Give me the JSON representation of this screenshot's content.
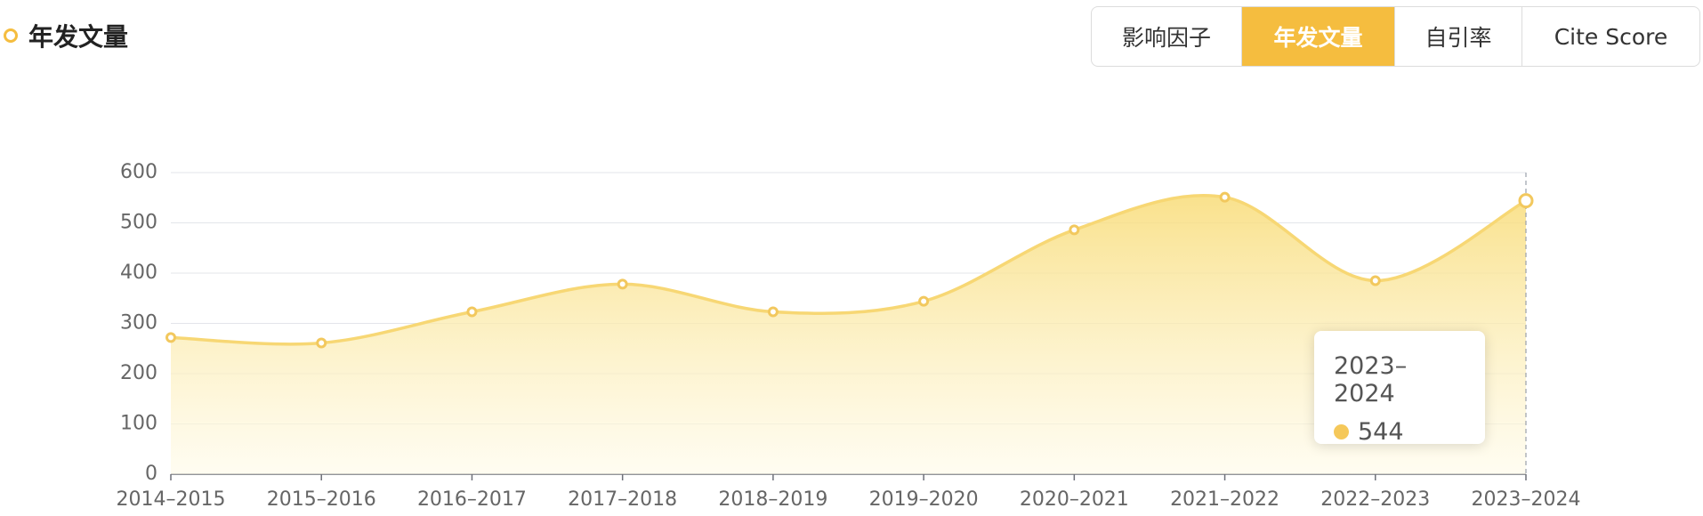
{
  "header": {
    "title": "年发文量"
  },
  "tabs": [
    {
      "label": "影响因子",
      "active": false
    },
    {
      "label": "年发文量",
      "active": true
    },
    {
      "label": "自引率",
      "active": false
    },
    {
      "label": "Cite Score",
      "active": false
    }
  ],
  "chart_data": {
    "type": "area",
    "categories": [
      "2014–2015",
      "2015–2016",
      "2016–2017",
      "2017–2018",
      "2018–2019",
      "2019–2020",
      "2020–2021",
      "2021–2022",
      "2022–2023",
      "2023–2024"
    ],
    "values": [
      272,
      261,
      323,
      378,
      323,
      344,
      486,
      551,
      385,
      544
    ],
    "color": "#f7d774",
    "ylim": [
      0,
      600
    ],
    "yticks": [
      0,
      100,
      200,
      300,
      400,
      500,
      600
    ],
    "grid": true
  }
}
